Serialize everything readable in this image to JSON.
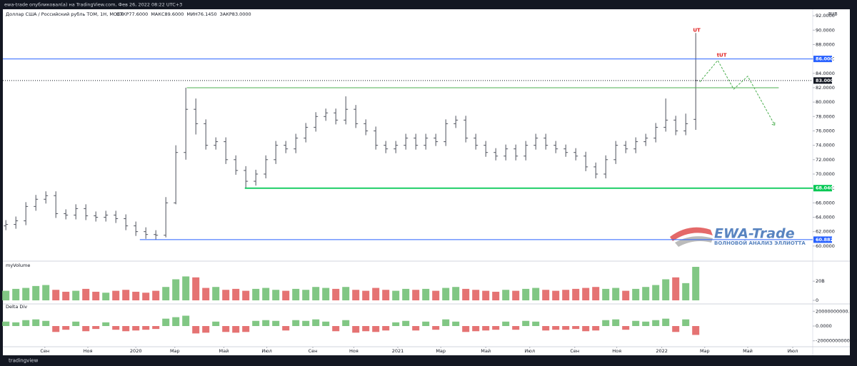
{
  "header": {
    "publisher": "ewa-trade опубликовал(а) на TradingView.com, Фев 26, 2022 08:22 UTC+3"
  },
  "footer": {
    "logo": "tradingview"
  },
  "watermark": {
    "title": "EWA-Trade",
    "subtitle": "ВОЛНОВОЙ АНАЛИЗ ЭЛЛИОТТА"
  },
  "chart_data": [
    {
      "type": "ohlc",
      "title": "Доллар США / Российский рубль TOM, 1Н, MOEX",
      "ohlc_legend": [
        "ОТКР77.6000",
        "МАКС89.6000",
        "МИН76.1450",
        "ЗАКР83.0000"
      ],
      "currency": "RUB",
      "color": "#50535e",
      "open": [
        62.8,
        63,
        63.5,
        65.5,
        66.5,
        67,
        64.5,
        64.3,
        65.2,
        64.2,
        64,
        64.3,
        63.8,
        62.8,
        62,
        61.6,
        61.5,
        66,
        73,
        79,
        77,
        74,
        74.5,
        72,
        70.5,
        69,
        70,
        72,
        74,
        73.5,
        75,
        76.5,
        78,
        78.5,
        77.5,
        79,
        77,
        76,
        74,
        73.5,
        74,
        75,
        74,
        75,
        74.5,
        77,
        77.5,
        75,
        74,
        73,
        72.5,
        73.5,
        72.5,
        74,
        75,
        74,
        73.5,
        73,
        72.5,
        71,
        70,
        72,
        74,
        73.5,
        74.5,
        75,
        76.5,
        77.5,
        76,
        77.6
      ],
      "high": [
        63.6,
        64.1,
        66.1,
        67.1,
        67.6,
        67.6,
        65.1,
        65.8,
        65.8,
        64.8,
        64.9,
        64.9,
        64.4,
        63.4,
        62.6,
        62.2,
        66.8,
        74,
        82,
        80.5,
        77.6,
        75.1,
        75.1,
        72.6,
        71.1,
        70.6,
        72.6,
        74.6,
        74.6,
        75.6,
        77.1,
        78.6,
        79.1,
        79.1,
        80.8,
        79.6,
        77.6,
        76.6,
        74.6,
        74.6,
        75.6,
        75.6,
        75.6,
        75.6,
        77.6,
        78.1,
        78.1,
        75.6,
        74.6,
        73.6,
        74.1,
        74.1,
        74.6,
        75.6,
        75.6,
        74.6,
        74.1,
        73.6,
        73.1,
        71.6,
        72.6,
        74.6,
        74.6,
        75.1,
        75.6,
        77.1,
        80.5,
        78.1,
        78.4,
        89.6
      ],
      "low": [
        62.2,
        62.4,
        62.9,
        64.9,
        65.9,
        63.9,
        63.7,
        63.7,
        63.6,
        63.4,
        63.4,
        63.2,
        62.2,
        61.4,
        61,
        60.9,
        61.2,
        65.8,
        72,
        75.5,
        73.4,
        73.4,
        71.4,
        69.9,
        68.04,
        68.4,
        69.4,
        71.4,
        72.9,
        72.9,
        74.4,
        75.9,
        77.4,
        76.9,
        76.9,
        76.4,
        75.4,
        73.4,
        72.9,
        72.9,
        73.4,
        73.4,
        73.4,
        73.9,
        73.9,
        76.4,
        74.4,
        73.4,
        72.4,
        71.9,
        71.9,
        71.9,
        71.9,
        73.4,
        73.4,
        72.9,
        72.4,
        71.9,
        70.4,
        69.4,
        69.4,
        71.4,
        72.9,
        72.9,
        73.9,
        74.4,
        75.9,
        75.4,
        75.4,
        76.145
      ],
      "close": [
        63,
        63.5,
        65.5,
        66.5,
        67,
        64.5,
        64.3,
        65.2,
        64.2,
        64,
        64.3,
        63.8,
        62.8,
        62,
        61.6,
        61.5,
        66,
        73,
        79,
        77,
        74,
        74.5,
        72,
        70.5,
        69,
        70,
        72,
        74,
        73.5,
        75,
        76.5,
        78,
        78.5,
        77.5,
        79,
        77,
        76,
        74,
        73.5,
        74,
        75,
        74,
        75,
        74.5,
        77,
        77.5,
        75,
        74,
        73,
        72.5,
        73.5,
        72.5,
        74,
        75,
        74,
        73.5,
        73,
        72.5,
        71,
        70,
        72,
        74,
        73.5,
        74.5,
        75,
        76.5,
        77.5,
        76,
        77,
        83
      ],
      "xlim": [
        -0.3,
        80.7
      ],
      "ylim": [
        58,
        93
      ],
      "yticks": [
        {
          "value": 60,
          "label": "60.0000"
        },
        {
          "value": 62,
          "label": "62.0000"
        },
        {
          "value": 64,
          "label": "64.0000"
        },
        {
          "value": 66,
          "label": "66.0000"
        },
        {
          "value": 68,
          "label": "68.0000"
        },
        {
          "value": 70,
          "label": "70.0000"
        },
        {
          "value": 72,
          "label": "72.0000"
        },
        {
          "value": 74,
          "label": "74.0000"
        },
        {
          "value": 76,
          "label": "76.0000"
        },
        {
          "value": 78,
          "label": "78.0000"
        },
        {
          "value": 80,
          "label": "80.0000"
        },
        {
          "value": 82,
          "label": "82.0000"
        },
        {
          "value": 84,
          "label": "84.0000"
        },
        {
          "value": 86,
          "label": "86.0000"
        },
        {
          "value": 88,
          "label": "88.0000"
        },
        {
          "value": 90,
          "label": "90.0000"
        },
        {
          "value": 92,
          "label": "92.0000"
        }
      ],
      "levels": [
        {
          "value": 86,
          "label": "86.0000",
          "color": "#2962ff",
          "style": "solid",
          "x_from": -0.3
        },
        {
          "value": 83,
          "label": "83.0000",
          "color": "#131722",
          "style": "dotted",
          "x_from": -0.3
        },
        {
          "value": 82,
          "color": "#4caf50",
          "style": "solid",
          "x_from": 18.1,
          "x_to": 77.3
        },
        {
          "value": 68.04,
          "label": "68.0400",
          "color": "#00c853",
          "style": "bold",
          "x_from": 23.9
        },
        {
          "value": 60.8825,
          "label": "60.8825",
          "color": "#2962ff",
          "style": "solid",
          "x_from": 13.4
        }
      ],
      "annotations": [
        {
          "text": "UT",
          "x": 69.1,
          "y": 90,
          "color": "#e02020"
        },
        {
          "text": "tUT",
          "x": 71.6,
          "y": 86.5,
          "color": "#e02020"
        }
      ],
      "projection": {
        "x": [
          69.4,
          71.2,
          72.8,
          74.2,
          76.9
        ],
        "values": [
          82.8,
          85.8,
          81.8,
          83.6,
          76.8
        ],
        "color": "#4caf50"
      }
    },
    {
      "type": "bar",
      "title": "myVolume",
      "up_color": "#81c784",
      "down_color": "#e57373",
      "values": [
        10000000000.0,
        12000000000.0,
        13000000000.0,
        15000000000.0,
        16000000000.0,
        11000000000.0,
        9000000000.0,
        10000000000.0,
        12000000000.0,
        9000000000.0,
        8000000000.0,
        10000000000.0,
        11000000000.0,
        9000000000.0,
        8000000000.0,
        10000000000.0,
        14000000000.0,
        22000000000.0,
        25000000000.0,
        24000000000.0,
        13000000000.0,
        14000000000.0,
        11000000000.0,
        12000000000.0,
        10000000000.0,
        12000000000.0,
        13000000000.0,
        11000000000.0,
        10000000000.0,
        12000000000.0,
        11000000000.0,
        14000000000.0,
        13000000000.0,
        12000000000.0,
        14000000000.0,
        11000000000.0,
        10000000000.0,
        13000000000.0,
        11000000000.0,
        10000000000.0,
        12000000000.0,
        11000000000.0,
        12000000000.0,
        10000000000.0,
        13000000000.0,
        14000000000.0,
        12000000000.0,
        11000000000.0,
        10000000000.0,
        9000000000.0,
        11000000000.0,
        10000000000.0,
        12000000000.0,
        13000000000.0,
        11000000000.0,
        10000000000.0,
        11000000000.0,
        12000000000.0,
        13000000000.0,
        14000000000.0,
        12000000000.0,
        13000000000.0,
        10000000000.0,
        12000000000.0,
        14000000000.0,
        16000000000.0,
        22000000000.0,
        24000000000.0,
        18000000000.0,
        35000000000.0
      ],
      "xlim": [
        -0.3,
        80.7
      ],
      "ylim": [
        0,
        38000000000.0
      ],
      "yticks": [
        {
          "value": 20000000000,
          "label": "20B"
        },
        0
      ]
    },
    {
      "type": "bar",
      "title": "Delta Div",
      "up_color": "#81c784",
      "down_color": "#e57373",
      "values": [
        6000000000.0,
        5000000000.0,
        8000000000.0,
        9000000000.0,
        7000000000.0,
        -8000000000.0,
        -5000000000.0,
        6000000000.0,
        -7000000000.0,
        -4000000000.0,
        5000000000.0,
        -5000000000.0,
        -7000000000.0,
        -6000000000.0,
        -5000000000.0,
        -4000000000.0,
        10000000000.0,
        12000000000.0,
        14000000000.0,
        -10000000000.0,
        -9000000000.0,
        6000000000.0,
        -8000000000.0,
        -9000000000.0,
        -8000000000.0,
        7000000000.0,
        8000000000.0,
        7000000000.0,
        -6000000000.0,
        8000000000.0,
        7000000000.0,
        9000000000.0,
        6000000000.0,
        -7000000000.0,
        8000000000.0,
        -9000000000.0,
        -7000000000.0,
        -8000000000.0,
        -6000000000.0,
        5000000000.0,
        7000000000.0,
        -6000000000.0,
        6000000000.0,
        -5000000000.0,
        9000000000.0,
        6000000000.0,
        -8000000000.0,
        -7000000000.0,
        -6000000000.0,
        -5000000000.0,
        6000000000.0,
        -5000000000.0,
        7000000000.0,
        6000000000.0,
        -6000000000.0,
        -5000000000.0,
        -5000000000.0,
        -4000000000.0,
        -7000000000.0,
        -6000000000.0,
        8000000000.0,
        9000000000.0,
        -5000000000.0,
        7000000000.0,
        6000000000.0,
        8000000000.0,
        10000000000.0,
        -8000000000.0,
        9000000000.0,
        -12000000000.0
      ],
      "xlim": [
        -0.3,
        80.7
      ],
      "ylim": [
        -28000000000.0,
        28000000000.0
      ],
      "yticks": [
        {
          "value": 20000000000,
          "label": "20000000000.0000"
        },
        {
          "value": 0,
          "label": "0.0000"
        },
        {
          "value": -20000000000,
          "label": "-20000000000.0000"
        }
      ],
      "xticks": [
        {
          "value": 3.9,
          "label": "Сен"
        },
        {
          "value": 8.2,
          "label": "Ноя"
        },
        {
          "value": 13,
          "label": "2020"
        },
        {
          "value": 16.9,
          "label": "Мар"
        },
        {
          "value": 21.8,
          "label": "Май"
        },
        {
          "value": 26.1,
          "label": "Июл"
        },
        {
          "value": 30.7,
          "label": "Сен"
        },
        {
          "value": 34.8,
          "label": "Ноя"
        },
        {
          "value": 39.2,
          "label": "2021"
        },
        {
          "value": 43.5,
          "label": "Мар"
        },
        {
          "value": 48,
          "label": "Май"
        },
        {
          "value": 52.4,
          "label": "Июл"
        },
        {
          "value": 56.9,
          "label": "Сен"
        },
        {
          "value": 61.1,
          "label": "Ноя"
        },
        {
          "value": 65.6,
          "label": "2022"
        },
        {
          "value": 69.9,
          "label": "Мар"
        },
        {
          "value": 74.2,
          "label": "Май"
        },
        {
          "value": 78.7,
          "label": "Июл"
        }
      ]
    }
  ]
}
